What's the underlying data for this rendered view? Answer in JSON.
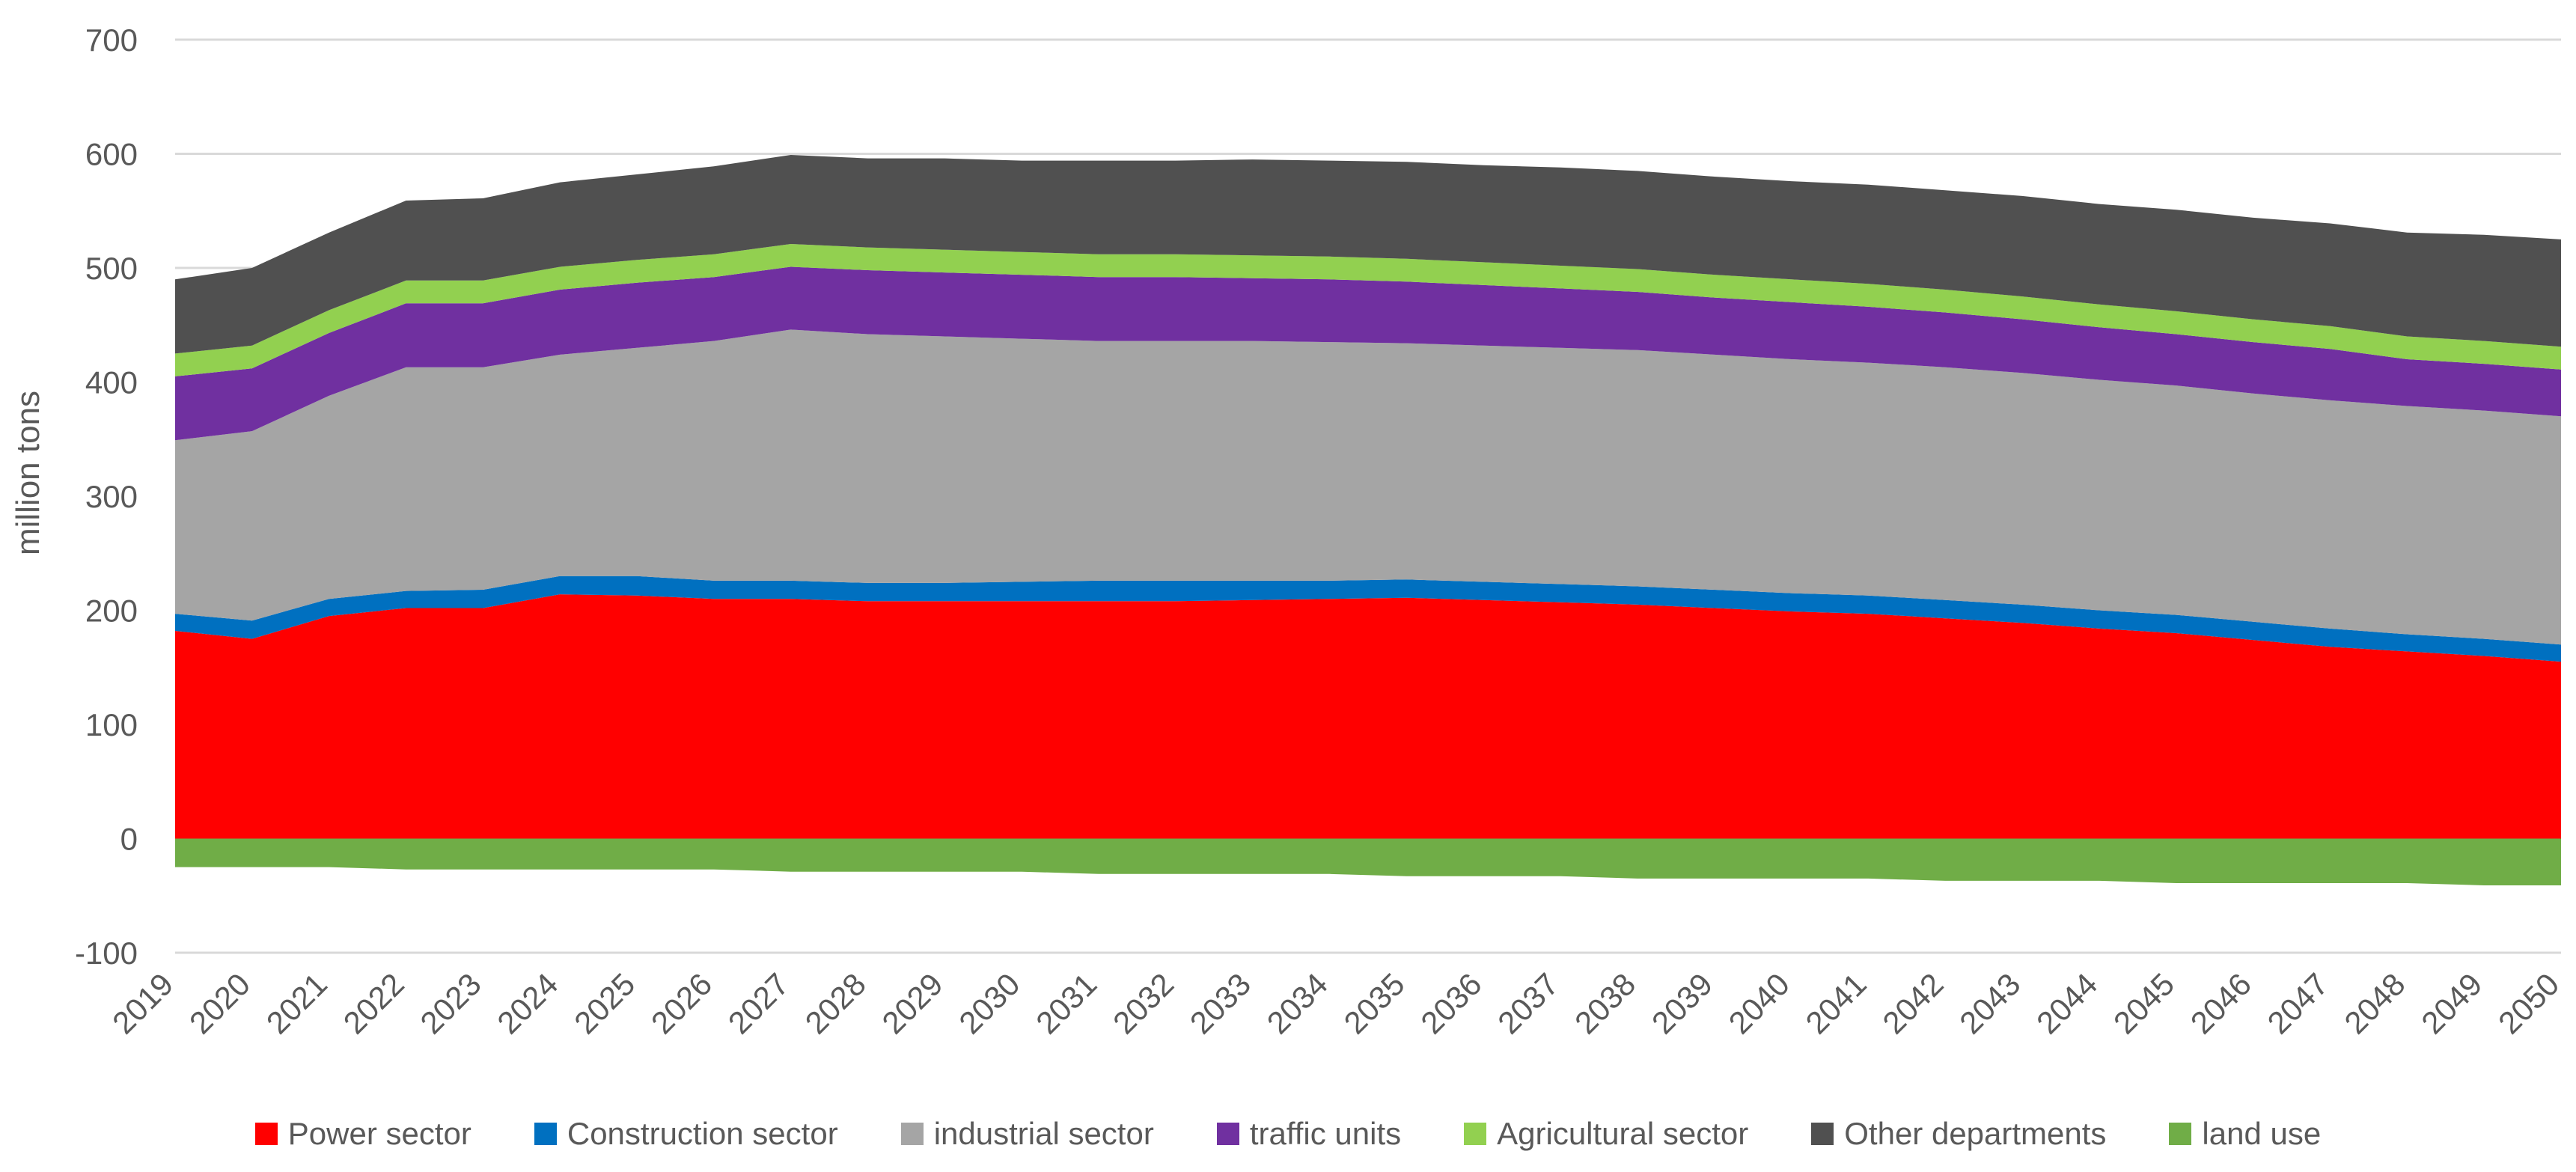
{
  "chart_data": {
    "type": "area",
    "stacked": true,
    "title": "",
    "xlabel": "",
    "ylabel": "million tons",
    "ylim": [
      -100,
      700
    ],
    "yticks": [
      -100,
      0,
      100,
      200,
      300,
      400,
      500,
      600,
      700
    ],
    "grid": true,
    "legend_position": "bottom",
    "categories": [
      "2019",
      "2020",
      "2021",
      "2022",
      "2023",
      "2024",
      "2025",
      "2026",
      "2027",
      "2028",
      "2029",
      "2030",
      "2031",
      "2032",
      "2033",
      "2034",
      "2035",
      "2036",
      "2037",
      "2038",
      "2039",
      "2040",
      "2041",
      "2042",
      "2043",
      "2044",
      "2045",
      "2046",
      "2047",
      "2048",
      "2049",
      "2050"
    ],
    "series": [
      {
        "name": "Power sector",
        "color": "#ff0000",
        "values": [
          182,
          175,
          195,
          202,
          202,
          214,
          213,
          210,
          210,
          208,
          208,
          208,
          208,
          208,
          209,
          210,
          211,
          209,
          207,
          205,
          202,
          199,
          197,
          193,
          189,
          184,
          180,
          174,
          168,
          164,
          160,
          155
        ]
      },
      {
        "name": "Construction sector",
        "color": "#0070c0",
        "values": [
          15,
          16,
          15,
          15,
          16,
          16,
          17,
          16,
          16,
          16,
          16,
          17,
          18,
          18,
          17,
          16,
          16,
          16,
          16,
          16,
          16,
          16,
          16,
          16,
          16,
          16,
          16,
          16,
          16,
          15,
          15,
          15
        ]
      },
      {
        "name": "industrial sector",
        "color": "#a5a5a5",
        "values": [
          152,
          166,
          178,
          196,
          195,
          194,
          200,
          210,
          220,
          218,
          216,
          213,
          210,
          210,
          210,
          209,
          207,
          207,
          207,
          207,
          206,
          205,
          204,
          204,
          203,
          202,
          201,
          200,
          200,
          200,
          200,
          200
        ]
      },
      {
        "name": "traffic units",
        "color": "#7030a0",
        "values": [
          56,
          55,
          55,
          56,
          56,
          57,
          57,
          56,
          55,
          56,
          56,
          56,
          56,
          56,
          55,
          55,
          54,
          53,
          52,
          51,
          50,
          50,
          49,
          48,
          47,
          46,
          45,
          45,
          45,
          41,
          41,
          41
        ]
      },
      {
        "name": "Agricultural sector",
        "color": "#92d050",
        "values": [
          20,
          20,
          20,
          20,
          20,
          20,
          20,
          20,
          20,
          20,
          20,
          20,
          20,
          20,
          20,
          20,
          20,
          20,
          20,
          20,
          20,
          20,
          20,
          20,
          20,
          20,
          20,
          20,
          20,
          20,
          20,
          20
        ]
      },
      {
        "name": "Other departments",
        "color": "#505050",
        "values": [
          65,
          68,
          68,
          70,
          72,
          74,
          75,
          77,
          78,
          78,
          80,
          80,
          82,
          82,
          84,
          84,
          85,
          85,
          86,
          86,
          86,
          86,
          87,
          87,
          88,
          88,
          89,
          89,
          90,
          91,
          93,
          94
        ]
      },
      {
        "name": "land use",
        "color": "#70ad47",
        "values": [
          -25,
          -25,
          -25,
          -27,
          -27,
          -27,
          -27,
          -27,
          -29,
          -29,
          -29,
          -29,
          -31,
          -31,
          -31,
          -31,
          -33,
          -33,
          -33,
          -35,
          -35,
          -35,
          -35,
          -37,
          -37,
          -37,
          -39,
          -39,
          -39,
          -39,
          -41,
          -41
        ]
      }
    ]
  }
}
